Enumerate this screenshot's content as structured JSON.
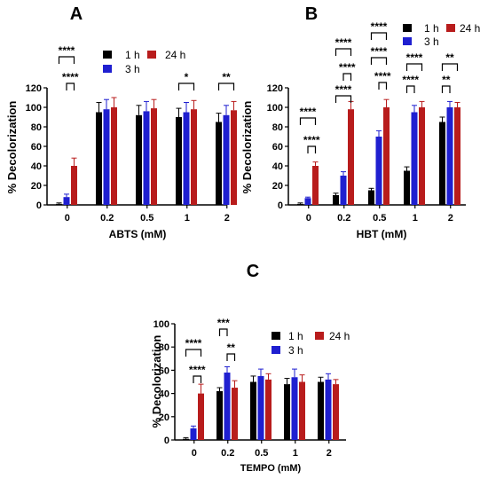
{
  "chart_data": [
    {
      "type": "bar",
      "panel": "A",
      "xlabel": "ABTS (mM)",
      "ylabel": "% Decolorization",
      "ylim": [
        0,
        120
      ],
      "yticks": [
        0,
        20,
        40,
        60,
        80,
        100,
        120
      ],
      "categories": [
        "0",
        "0.2",
        "0.5",
        "1",
        "2"
      ],
      "series": [
        {
          "name": "1 h",
          "color": "#000000",
          "values": [
            1,
            95,
            92,
            90,
            85
          ],
          "errors": [
            1,
            10,
            10,
            9,
            9
          ]
        },
        {
          "name": "3 h",
          "color": "#1f1fd0",
          "values": [
            8,
            98,
            96,
            95,
            92
          ],
          "errors": [
            3,
            10,
            10,
            10,
            10
          ]
        },
        {
          "name": "24 h",
          "color": "#b81c1c",
          "values": [
            40,
            100,
            99,
            98,
            97
          ],
          "errors": [
            8,
            10,
            9,
            9,
            9
          ]
        }
      ],
      "legend": [
        "1 h",
        "24 h",
        "3 h"
      ],
      "significance": [
        {
          "category": "0",
          "pair": [
            "1 h",
            "24 h"
          ],
          "label": "****"
        },
        {
          "category": "0",
          "pair": [
            "3 h",
            "24 h"
          ],
          "label": "****"
        },
        {
          "category": "1",
          "pair": [
            "1 h",
            "24 h"
          ],
          "label": "*"
        },
        {
          "category": "2",
          "pair": [
            "1 h",
            "24 h"
          ],
          "label": "**"
        }
      ]
    },
    {
      "type": "bar",
      "panel": "B",
      "xlabel": "HBT (mM)",
      "ylabel": "% Decolorization",
      "ylim": [
        0,
        120
      ],
      "yticks": [
        0,
        20,
        40,
        60,
        80,
        100,
        120
      ],
      "categories": [
        "0",
        "0.2",
        "0.5",
        "1",
        "2"
      ],
      "series": [
        {
          "name": "1 h",
          "color": "#000000",
          "values": [
            1,
            10,
            15,
            35,
            85
          ],
          "errors": [
            1,
            2,
            2,
            4,
            5
          ]
        },
        {
          "name": "3 h",
          "color": "#1f1fd0",
          "values": [
            7,
            30,
            70,
            95,
            100
          ],
          "errors": [
            1,
            4,
            6,
            7,
            6
          ]
        },
        {
          "name": "24 h",
          "color": "#b81c1c",
          "values": [
            40,
            98,
            100,
            100,
            100
          ],
          "errors": [
            4,
            8,
            8,
            6,
            5
          ]
        }
      ],
      "legend": [
        "1 h",
        "24 h",
        "3 h"
      ],
      "significance": [
        {
          "category": "0",
          "pair": [
            "1 h",
            "24 h"
          ],
          "label": "****"
        },
        {
          "category": "0",
          "pair": [
            "3 h",
            "24 h"
          ],
          "label": "****"
        },
        {
          "category": "0.2",
          "pair": [
            "1 h",
            "24 h"
          ],
          "label": "****"
        },
        {
          "category": "0.2",
          "pair": [
            "3 h",
            "24 h"
          ],
          "label": "****"
        },
        {
          "category": "0.2",
          "pair": [
            "1 h",
            "24 h"
          ],
          "label": "****"
        },
        {
          "category": "0.5",
          "pair": [
            "1 h",
            "24 h"
          ],
          "label": "****"
        },
        {
          "category": "0.5",
          "pair": [
            "3 h",
            "24 h"
          ],
          "label": "****"
        },
        {
          "category": "0.5",
          "pair": [
            "1 h",
            "24 h"
          ],
          "label": "****"
        },
        {
          "category": "1",
          "pair": [
            "1 h",
            "3 h"
          ],
          "label": "****"
        },
        {
          "category": "1",
          "pair": [
            "1 h",
            "24 h"
          ],
          "label": "****"
        },
        {
          "category": "2",
          "pair": [
            "1 h",
            "3 h"
          ],
          "label": "**"
        },
        {
          "category": "2",
          "pair": [
            "1 h",
            "24 h"
          ],
          "label": "**"
        }
      ]
    },
    {
      "type": "bar",
      "panel": "C",
      "xlabel": "TEMPO (mM)",
      "ylabel": "% Decolorization",
      "ylim": [
        0,
        100
      ],
      "yticks": [
        0,
        20,
        40,
        60,
        80,
        100
      ],
      "categories": [
        "0",
        "0.2",
        "0.5",
        "1",
        "2"
      ],
      "series": [
        {
          "name": "1 h",
          "color": "#000000",
          "values": [
            1,
            42,
            50,
            48,
            50
          ],
          "errors": [
            1,
            3,
            5,
            5,
            4
          ]
        },
        {
          "name": "3 h",
          "color": "#1f1fd0",
          "values": [
            10,
            58,
            55,
            54,
            52
          ],
          "errors": [
            2,
            5,
            6,
            7,
            5
          ]
        },
        {
          "name": "24 h",
          "color": "#b81c1c",
          "values": [
            40,
            45,
            52,
            50,
            48
          ],
          "errors": [
            8,
            6,
            5,
            6,
            4
          ]
        }
      ],
      "legend": [
        "1 h",
        "24 h",
        "3 h"
      ],
      "significance": [
        {
          "category": "0",
          "pair": [
            "1 h",
            "24 h"
          ],
          "label": "****"
        },
        {
          "category": "0",
          "pair": [
            "3 h",
            "24 h"
          ],
          "label": "****"
        },
        {
          "category": "0.2",
          "pair": [
            "1 h",
            "3 h"
          ],
          "label": "***"
        },
        {
          "category": "0.2",
          "pair": [
            "3 h",
            "24 h"
          ],
          "label": "**"
        }
      ]
    }
  ]
}
